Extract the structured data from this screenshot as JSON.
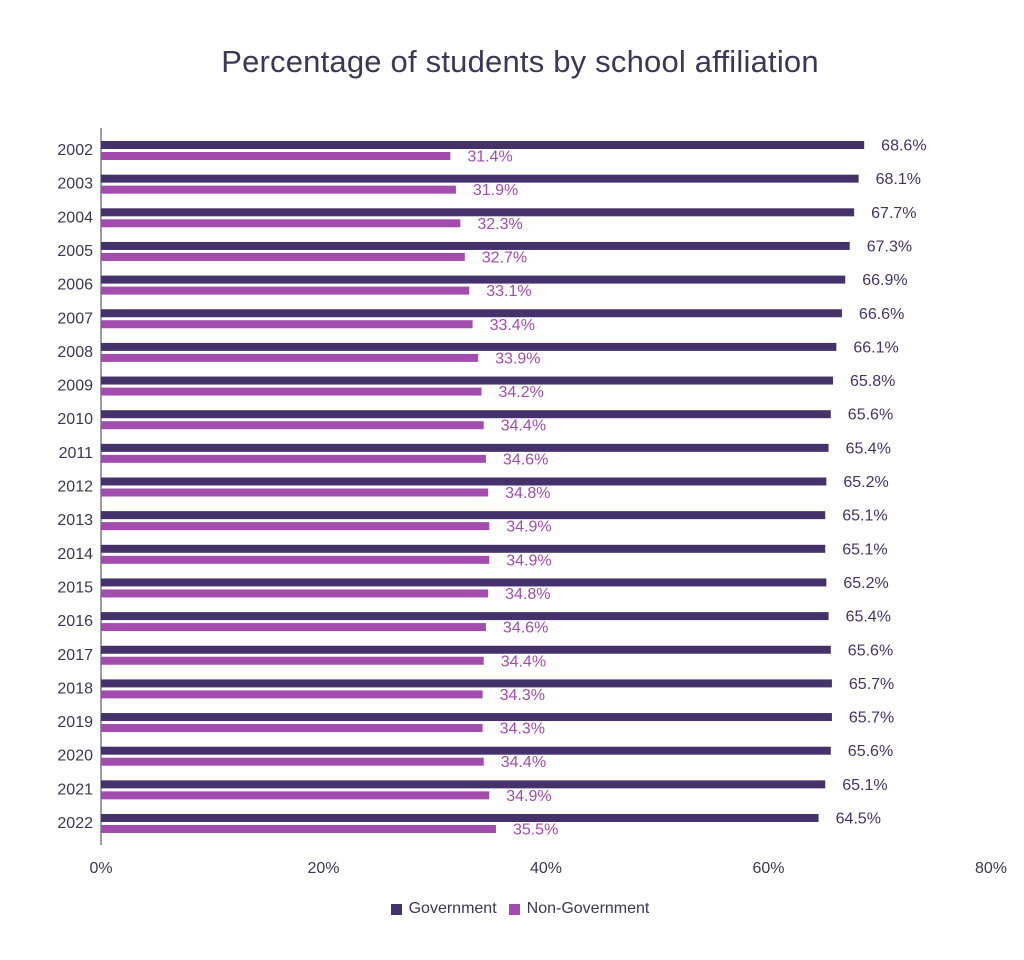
{
  "colors": {
    "government": "#45326a",
    "non_government": "#a24cae",
    "axis": "#3b3756",
    "text": "#3b3756"
  },
  "chart_data": {
    "type": "bar",
    "orientation": "horizontal",
    "title": "Percentage of students by school affiliation",
    "xlabel": "",
    "ylabel": "",
    "categories": [
      "2002",
      "2003",
      "2004",
      "2005",
      "2006",
      "2007",
      "2008",
      "2009",
      "2010",
      "2011",
      "2012",
      "2013",
      "2014",
      "2015",
      "2016",
      "2017",
      "2018",
      "2019",
      "2020",
      "2021",
      "2022"
    ],
    "series": [
      {
        "name": "Government",
        "color": "#45326a",
        "values": [
          68.6,
          68.1,
          67.7,
          67.3,
          66.9,
          66.6,
          66.1,
          65.8,
          65.6,
          65.4,
          65.2,
          65.1,
          65.1,
          65.2,
          65.4,
          65.6,
          65.7,
          65.7,
          65.6,
          65.1,
          64.5
        ]
      },
      {
        "name": "Non-Government",
        "color": "#a24cae",
        "values": [
          31.4,
          31.9,
          32.3,
          32.7,
          33.1,
          33.4,
          33.9,
          34.2,
          34.4,
          34.6,
          34.8,
          34.9,
          34.9,
          34.8,
          34.6,
          34.4,
          34.3,
          34.3,
          34.4,
          34.9,
          35.5
        ]
      }
    ],
    "xlim": [
      0,
      80
    ],
    "xticks": [
      0,
      20,
      40,
      60,
      80
    ],
    "xtick_labels": [
      "0%",
      "20%",
      "40%",
      "60%",
      "80%"
    ],
    "value_suffix": "%",
    "grid": false,
    "legend_position": "bottom-center"
  }
}
